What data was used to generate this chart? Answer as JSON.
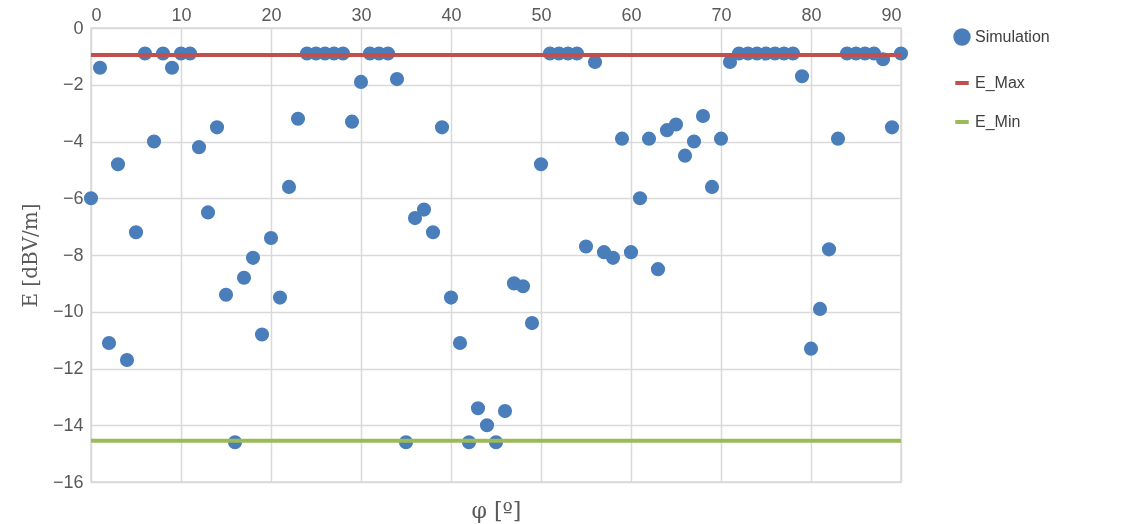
{
  "chart_data": {
    "type": "scatter",
    "xlabel": "φ [º]",
    "ylabel": "E [dBV/m]",
    "xlim": [
      0,
      90
    ],
    "xticks": [
      0,
      10,
      20,
      30,
      40,
      50,
      60,
      70,
      80,
      90
    ],
    "ylim": [
      -16,
      0
    ],
    "yticks": [
      0,
      -2,
      -4,
      -6,
      -8,
      -10,
      -12,
      -14,
      -16
    ],
    "grid": true,
    "legend": "right",
    "series": [
      {
        "name": "Simulation",
        "color": "#4a7ebb",
        "marker": "circle",
        "x": [
          0,
          1,
          2,
          3,
          4,
          5,
          6,
          7,
          8,
          9,
          10,
          11,
          12,
          13,
          14,
          15,
          16,
          17,
          18,
          19,
          20,
          21,
          22,
          23,
          24,
          25,
          26,
          27,
          28,
          29,
          30,
          31,
          32,
          33,
          34,
          35,
          36,
          37,
          38,
          39,
          40,
          41,
          42,
          43,
          44,
          45,
          46,
          47,
          48,
          49,
          50,
          51,
          52,
          53,
          54,
          55,
          56,
          57,
          58,
          59,
          60,
          61,
          62,
          63,
          64,
          65,
          66,
          67,
          68,
          69,
          70,
          71,
          72,
          73,
          74,
          75,
          76,
          77,
          78,
          79,
          80,
          81,
          82,
          83,
          84,
          85,
          86,
          87,
          88,
          89,
          90
        ],
        "values": [
          -6.0,
          -1.4,
          -11.1,
          -4.8,
          -11.7,
          -7.2,
          -0.9,
          -4.0,
          -0.9,
          -1.4,
          -0.9,
          -0.9,
          -4.2,
          -6.5,
          -3.5,
          -9.4,
          -14.6,
          -8.8,
          -8.1,
          -10.8,
          -7.4,
          -9.5,
          -5.6,
          -3.2,
          -0.9,
          -0.9,
          -0.9,
          -0.9,
          -0.9,
          -3.3,
          -1.9,
          -0.9,
          -0.9,
          -0.9,
          -1.8,
          -14.6,
          -6.7,
          -6.4,
          -7.2,
          -3.5,
          -9.5,
          -11.1,
          -14.6,
          -13.4,
          -14.0,
          -14.6,
          -13.5,
          -9.0,
          -9.1,
          -10.4,
          -4.8,
          -0.9,
          -0.9,
          -0.9,
          -0.9,
          -7.7,
          -1.2,
          -7.9,
          -8.1,
          -3.9,
          -7.9,
          -6.0,
          -3.9,
          -8.5,
          -3.6,
          -3.4,
          -4.5,
          -4.0,
          -3.1,
          -5.6,
          -3.9,
          -1.2,
          -0.9,
          -0.9,
          -0.9,
          -0.9,
          -0.9,
          -0.9,
          -0.9,
          -1.7,
          -11.3,
          -9.9,
          -7.8,
          -3.9,
          -0.9,
          -0.9,
          -0.9,
          -0.9,
          -1.1,
          -3.5,
          -0.9
        ]
      },
      {
        "name": "E_Max",
        "type": "line",
        "marker": "none",
        "color": "#c0504d",
        "x": [
          0,
          90
        ],
        "values": [
          -0.95,
          -0.95
        ]
      },
      {
        "name": "E_Min",
        "type": "line",
        "marker": "none",
        "color": "#9bbb59",
        "x": [
          0,
          90
        ],
        "values": [
          -14.55,
          -14.55
        ]
      }
    ]
  }
}
